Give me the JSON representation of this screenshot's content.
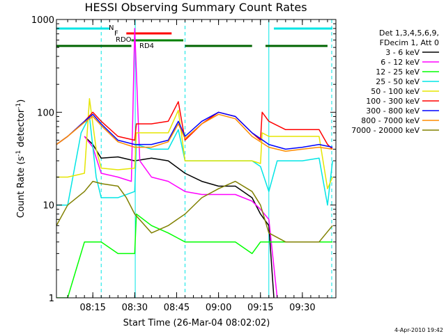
{
  "chart_data": {
    "type": "line",
    "title": "HESSI Observing Summary Count Rates",
    "xlabel": "Start Time (26-Mar-04 08:02:02)",
    "ylabel": "Count Rate (s⁻¹ detector⁻¹)",
    "ylabel_parts": {
      "main": "Count Rate (s",
      "sup1": "-1",
      "mid": " detector",
      "sup2": "-1",
      "end": ")"
    },
    "y_scale": "log",
    "ylim": [
      1,
      1000
    ],
    "xlim_minutes": [
      8.033,
      9.7
    ],
    "x_ticks": [
      {
        "label": "08:15",
        "t": 8.25
      },
      {
        "label": "08:30",
        "t": 8.5
      },
      {
        "label": "08:45",
        "t": 8.75
      },
      {
        "label": "09:00",
        "t": 9.0
      },
      {
        "label": "09:15",
        "t": 9.25
      },
      {
        "label": "09:30",
        "t": 9.5
      }
    ],
    "y_ticks": [
      {
        "label": "1",
        "v": 1
      },
      {
        "label": "10",
        "v": 10
      },
      {
        "label": "100",
        "v": 100
      },
      {
        "label": "1000",
        "v": 1000
      }
    ],
    "legend_header": [
      "Det 1,3,4,5,6,9,",
      "FDecim 1, Att 0"
    ],
    "legend_position": "right",
    "timestamp": "4-Apr-2010 19:42",
    "flags": [
      {
        "label": "N",
        "color": "#00e5e5",
        "segments": [
          [
            8.033,
            8.35
          ],
          [
            9.33,
            9.68
          ]
        ]
      },
      {
        "label": "F",
        "color": "#ff0000",
        "segments": [
          [
            8.45,
            8.72
          ]
        ]
      },
      {
        "label": "RDO",
        "color": "#008000",
        "segments": [
          [
            8.48,
            8.79
          ]
        ]
      },
      {
        "label": "RD4",
        "color": "#006400",
        "segments": [
          [
            8.033,
            8.48
          ],
          [
            8.8,
            9.2
          ],
          [
            9.28,
            9.65
          ]
        ]
      }
    ],
    "vertical_markers": [
      {
        "t": 8.3,
        "style": "dashed",
        "color": "#00e5e5"
      },
      {
        "t": 8.503,
        "style": "solid",
        "color": "#00e5e5"
      },
      {
        "t": 8.8,
        "style": "dashed",
        "color": "#00e5e5"
      },
      {
        "t": 9.3,
        "style": "solid",
        "color": "#00e5e5"
      },
      {
        "t": 9.675,
        "style": "dashed",
        "color": "#00e5e5"
      }
    ],
    "series": [
      {
        "name": "3 - 6 keV",
        "color": "#000000",
        "points": [
          [
            8.2,
            55
          ],
          [
            8.25,
            45
          ],
          [
            8.3,
            32
          ],
          [
            8.4,
            33
          ],
          [
            8.5,
            30
          ],
          [
            8.6,
            32
          ],
          [
            8.7,
            30
          ],
          [
            8.8,
            22
          ],
          [
            8.9,
            18
          ],
          [
            9.0,
            16
          ],
          [
            9.1,
            16
          ],
          [
            9.2,
            12
          ],
          [
            9.25,
            8
          ],
          [
            9.3,
            6
          ],
          [
            9.33,
            1
          ]
        ]
      },
      {
        "name": "6 - 12 keV",
        "color": "#ff00ff",
        "points": [
          [
            8.2,
            55
          ],
          [
            8.25,
            42
          ],
          [
            8.3,
            22
          ],
          [
            8.4,
            20
          ],
          [
            8.48,
            18
          ],
          [
            8.5,
            800
          ],
          [
            8.53,
            30
          ],
          [
            8.6,
            20
          ],
          [
            8.7,
            18
          ],
          [
            8.8,
            14
          ],
          [
            8.9,
            13
          ],
          [
            9.0,
            13
          ],
          [
            9.1,
            13
          ],
          [
            9.2,
            11
          ],
          [
            9.25,
            9
          ],
          [
            9.3,
            7
          ],
          [
            9.35,
            1
          ]
        ]
      },
      {
        "name": "12 - 25 keV",
        "color": "#00ff00",
        "points": [
          [
            8.033,
            1
          ],
          [
            8.1,
            1
          ],
          [
            8.15,
            2
          ],
          [
            8.2,
            4
          ],
          [
            8.3,
            4
          ],
          [
            8.4,
            3
          ],
          [
            8.5,
            3
          ],
          [
            8.51,
            8
          ],
          [
            8.6,
            6
          ],
          [
            8.7,
            5
          ],
          [
            8.8,
            4
          ],
          [
            8.9,
            4
          ],
          [
            9.0,
            4
          ],
          [
            9.1,
            4
          ],
          [
            9.2,
            3
          ],
          [
            9.25,
            4
          ],
          [
            9.3,
            4
          ],
          [
            9.4,
            4
          ],
          [
            9.5,
            4
          ],
          [
            9.6,
            4
          ],
          [
            9.68,
            4
          ]
        ]
      },
      {
        "name": "25 - 50 keV",
        "color": "#00e5e5",
        "points": [
          [
            8.033,
            10
          ],
          [
            8.1,
            10
          ],
          [
            8.18,
            60
          ],
          [
            8.23,
            90
          ],
          [
            8.27,
            20
          ],
          [
            8.3,
            12
          ],
          [
            8.4,
            12
          ],
          [
            8.5,
            14
          ],
          [
            8.51,
            45
          ],
          [
            8.6,
            40
          ],
          [
            8.7,
            40
          ],
          [
            8.76,
            65
          ],
          [
            8.8,
            30
          ],
          [
            8.9,
            30
          ],
          [
            9.0,
            30
          ],
          [
            9.1,
            30
          ],
          [
            9.2,
            30
          ],
          [
            9.25,
            26
          ],
          [
            9.3,
            14
          ],
          [
            9.35,
            30
          ],
          [
            9.4,
            30
          ],
          [
            9.5,
            30
          ],
          [
            9.6,
            32
          ],
          [
            9.65,
            10
          ],
          [
            9.68,
            30
          ]
        ]
      },
      {
        "name": "50 - 100 keV",
        "color": "#e5e500",
        "points": [
          [
            8.033,
            20
          ],
          [
            8.1,
            20
          ],
          [
            8.2,
            22
          ],
          [
            8.23,
            140
          ],
          [
            8.27,
            40
          ],
          [
            8.3,
            25
          ],
          [
            8.4,
            24
          ],
          [
            8.5,
            25
          ],
          [
            8.51,
            60
          ],
          [
            8.6,
            60
          ],
          [
            8.7,
            60
          ],
          [
            8.76,
            105
          ],
          [
            8.8,
            30
          ],
          [
            8.9,
            30
          ],
          [
            9.0,
            30
          ],
          [
            9.1,
            30
          ],
          [
            9.2,
            30
          ],
          [
            9.25,
            28
          ],
          [
            9.26,
            60
          ],
          [
            9.3,
            55
          ],
          [
            9.4,
            55
          ],
          [
            9.5,
            55
          ],
          [
            9.6,
            55
          ],
          [
            9.65,
            15
          ],
          [
            9.68,
            20
          ]
        ]
      },
      {
        "name": "100 - 300 keV",
        "color": "#ff0000",
        "points": [
          [
            8.033,
            45
          ],
          [
            8.1,
            55
          ],
          [
            8.2,
            80
          ],
          [
            8.25,
            100
          ],
          [
            8.3,
            80
          ],
          [
            8.4,
            55
          ],
          [
            8.5,
            50
          ],
          [
            8.51,
            75
          ],
          [
            8.6,
            75
          ],
          [
            8.7,
            80
          ],
          [
            8.76,
            130
          ],
          [
            8.8,
            50
          ],
          [
            8.9,
            75
          ],
          [
            9.0,
            100
          ],
          [
            9.1,
            90
          ],
          [
            9.2,
            60
          ],
          [
            9.25,
            50
          ],
          [
            9.26,
            100
          ],
          [
            9.3,
            80
          ],
          [
            9.4,
            65
          ],
          [
            9.5,
            65
          ],
          [
            9.6,
            65
          ],
          [
            9.65,
            45
          ],
          [
            9.68,
            40
          ]
        ]
      },
      {
        "name": "300 - 800 keV",
        "color": "#0000ff",
        "points": [
          [
            8.033,
            45
          ],
          [
            8.1,
            55
          ],
          [
            8.2,
            80
          ],
          [
            8.25,
            95
          ],
          [
            8.3,
            75
          ],
          [
            8.4,
            50
          ],
          [
            8.5,
            45
          ],
          [
            8.6,
            45
          ],
          [
            8.7,
            50
          ],
          [
            8.76,
            80
          ],
          [
            8.8,
            55
          ],
          [
            8.9,
            80
          ],
          [
            9.0,
            100
          ],
          [
            9.1,
            90
          ],
          [
            9.2,
            60
          ],
          [
            9.3,
            45
          ],
          [
            9.4,
            40
          ],
          [
            9.5,
            42
          ],
          [
            9.6,
            45
          ],
          [
            9.68,
            42
          ]
        ]
      },
      {
        "name": "800 - 7000 keV",
        "color": "#ff8c00",
        "points": [
          [
            8.033,
            45
          ],
          [
            8.1,
            55
          ],
          [
            8.2,
            78
          ],
          [
            8.25,
            90
          ],
          [
            8.3,
            72
          ],
          [
            8.4,
            48
          ],
          [
            8.5,
            42
          ],
          [
            8.6,
            42
          ],
          [
            8.7,
            48
          ],
          [
            8.76,
            75
          ],
          [
            8.8,
            52
          ],
          [
            8.9,
            75
          ],
          [
            9.0,
            95
          ],
          [
            9.1,
            85
          ],
          [
            9.2,
            55
          ],
          [
            9.3,
            42
          ],
          [
            9.4,
            38
          ],
          [
            9.5,
            40
          ],
          [
            9.6,
            42
          ],
          [
            9.68,
            40
          ]
        ]
      },
      {
        "name": "7000 - 20000 keV",
        "color": "#808000",
        "points": [
          [
            8.033,
            6
          ],
          [
            8.1,
            10
          ],
          [
            8.2,
            14
          ],
          [
            8.25,
            18
          ],
          [
            8.3,
            17
          ],
          [
            8.4,
            16
          ],
          [
            8.45,
            12
          ],
          [
            8.5,
            8
          ],
          [
            8.6,
            5
          ],
          [
            8.7,
            6
          ],
          [
            8.8,
            8
          ],
          [
            8.9,
            12
          ],
          [
            9.0,
            15
          ],
          [
            9.1,
            18
          ],
          [
            9.2,
            14
          ],
          [
            9.25,
            10
          ],
          [
            9.3,
            5
          ],
          [
            9.4,
            4
          ],
          [
            9.5,
            4
          ],
          [
            9.6,
            4
          ],
          [
            9.68,
            6
          ]
        ]
      }
    ]
  }
}
